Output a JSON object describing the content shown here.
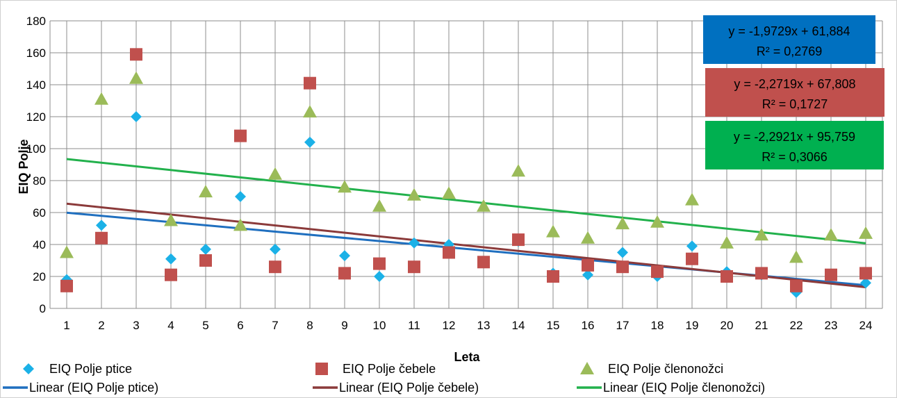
{
  "chart_data": {
    "type": "scatter",
    "xlabel": "Leta",
    "ylabel": "EIQ Polje",
    "xlim": [
      1,
      24
    ],
    "ylim": [
      0,
      180
    ],
    "y_ticks": [
      0,
      20,
      40,
      60,
      80,
      100,
      120,
      140,
      160,
      180
    ],
    "x_ticks": [
      1,
      2,
      3,
      4,
      5,
      6,
      7,
      8,
      9,
      10,
      11,
      12,
      13,
      14,
      15,
      16,
      17,
      18,
      19,
      20,
      21,
      22,
      23,
      24
    ],
    "grid": true,
    "legend_position": "bottom",
    "series": [
      {
        "name": "EIQ Polje ptice",
        "marker": "diamond",
        "color": "#1BB1E7",
        "x": [
          1,
          2,
          3,
          4,
          5,
          6,
          7,
          8,
          9,
          10,
          11,
          12,
          13,
          14,
          15,
          16,
          17,
          18,
          19,
          20,
          21,
          22,
          23,
          24
        ],
        "values": [
          18,
          52,
          120,
          31,
          37,
          70,
          37,
          104,
          33,
          20,
          41,
          40,
          29,
          42,
          22,
          21,
          35,
          20,
          39,
          23,
          21,
          10,
          21,
          16
        ]
      },
      {
        "name": "EIQ Polje čebele",
        "marker": "square",
        "color": "#C0504D",
        "x": [
          1,
          2,
          3,
          4,
          5,
          6,
          7,
          8,
          9,
          10,
          11,
          12,
          13,
          14,
          15,
          16,
          17,
          18,
          19,
          20,
          21,
          22,
          23,
          24
        ],
        "values": [
          14,
          44,
          159,
          21,
          30,
          108,
          26,
          141,
          22,
          28,
          26,
          35,
          29,
          43,
          20,
          27,
          26,
          23,
          31,
          20,
          22,
          14,
          21,
          22
        ]
      },
      {
        "name": "EIQ Polje členonožci",
        "marker": "triangle",
        "color": "#9BBB59",
        "x": [
          1,
          2,
          3,
          4,
          5,
          6,
          7,
          8,
          9,
          10,
          11,
          12,
          13,
          14,
          15,
          16,
          17,
          18,
          19,
          20,
          21,
          22,
          23,
          24
        ],
        "values": [
          35,
          131,
          144,
          55,
          73,
          52,
          84,
          123,
          76,
          64,
          71,
          72,
          64,
          86,
          48,
          44,
          53,
          54,
          68,
          41,
          46,
          32,
          46,
          47
        ]
      }
    ],
    "trendlines": [
      {
        "name": "Linear (EIQ Polje ptice)",
        "color": "#1F6FBF",
        "slope": -1.9729,
        "intercept": 61.884,
        "equation": "y = -1,9729x + 61,884",
        "r2": "R² = 0,2769",
        "box_color": "#0070C0"
      },
      {
        "name": "Linear (EIQ Polje čebele)",
        "color": "#8B3A3A",
        "slope": -2.2719,
        "intercept": 67.808,
        "equation": "y = -2,2719x + 67,808",
        "r2": "R² = 0,1727",
        "box_color": "#C0504D"
      },
      {
        "name": "Linear (EIQ Polje členonožci)",
        "color": "#22B14C",
        "slope": -2.2921,
        "intercept": 95.759,
        "equation": "y = -2,2921x + 95,759",
        "r2": "R² = 0,3066",
        "box_color": "#00B050"
      }
    ]
  }
}
